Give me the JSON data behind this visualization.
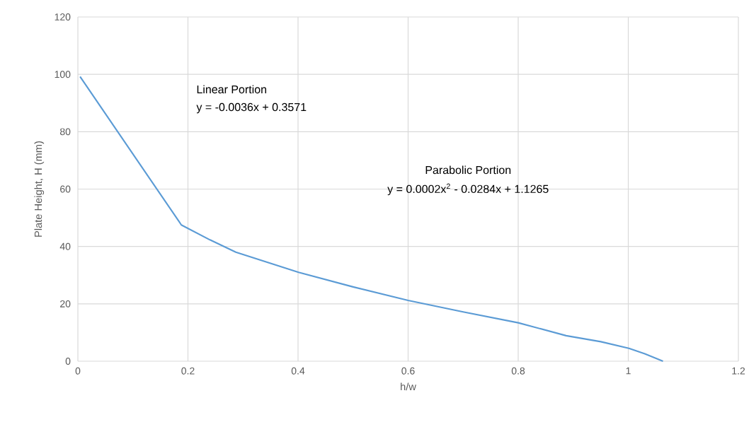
{
  "chart_data": {
    "type": "line",
    "xlabel": "h/w",
    "ylabel": "Plate Height, H (mm)",
    "x": [
      0.004,
      0.188,
      0.24,
      0.287,
      0.347,
      0.401,
      0.5,
      0.6,
      0.7,
      0.8,
      0.887,
      0.95,
      1.001,
      1.03,
      1.063
    ],
    "series": [
      {
        "color": "#5b9bd5",
        "values": [
          99.2,
          47.5,
          42.3,
          38.0,
          34.3,
          31.0,
          25.9,
          21.2,
          17.2,
          13.4,
          8.9,
          6.8,
          4.5,
          2.6,
          0
        ]
      }
    ],
    "xlim": [
      0,
      1.2
    ],
    "xticks": [
      0,
      0.2,
      0.4,
      0.6,
      0.8,
      1,
      1.2
    ],
    "ylim": [
      0,
      120
    ],
    "yticks": [
      0,
      20,
      40,
      60,
      80,
      100,
      120
    ],
    "grid": true,
    "marker": "none",
    "line_style": "solid",
    "annotations": [
      "Linear Portion",
      "y = -0.0036x + 0.3571",
      "Parabolic Portion",
      "y = 0.0002x$^{2}$ - 0.0284x + 1.1265"
    ]
  }
}
